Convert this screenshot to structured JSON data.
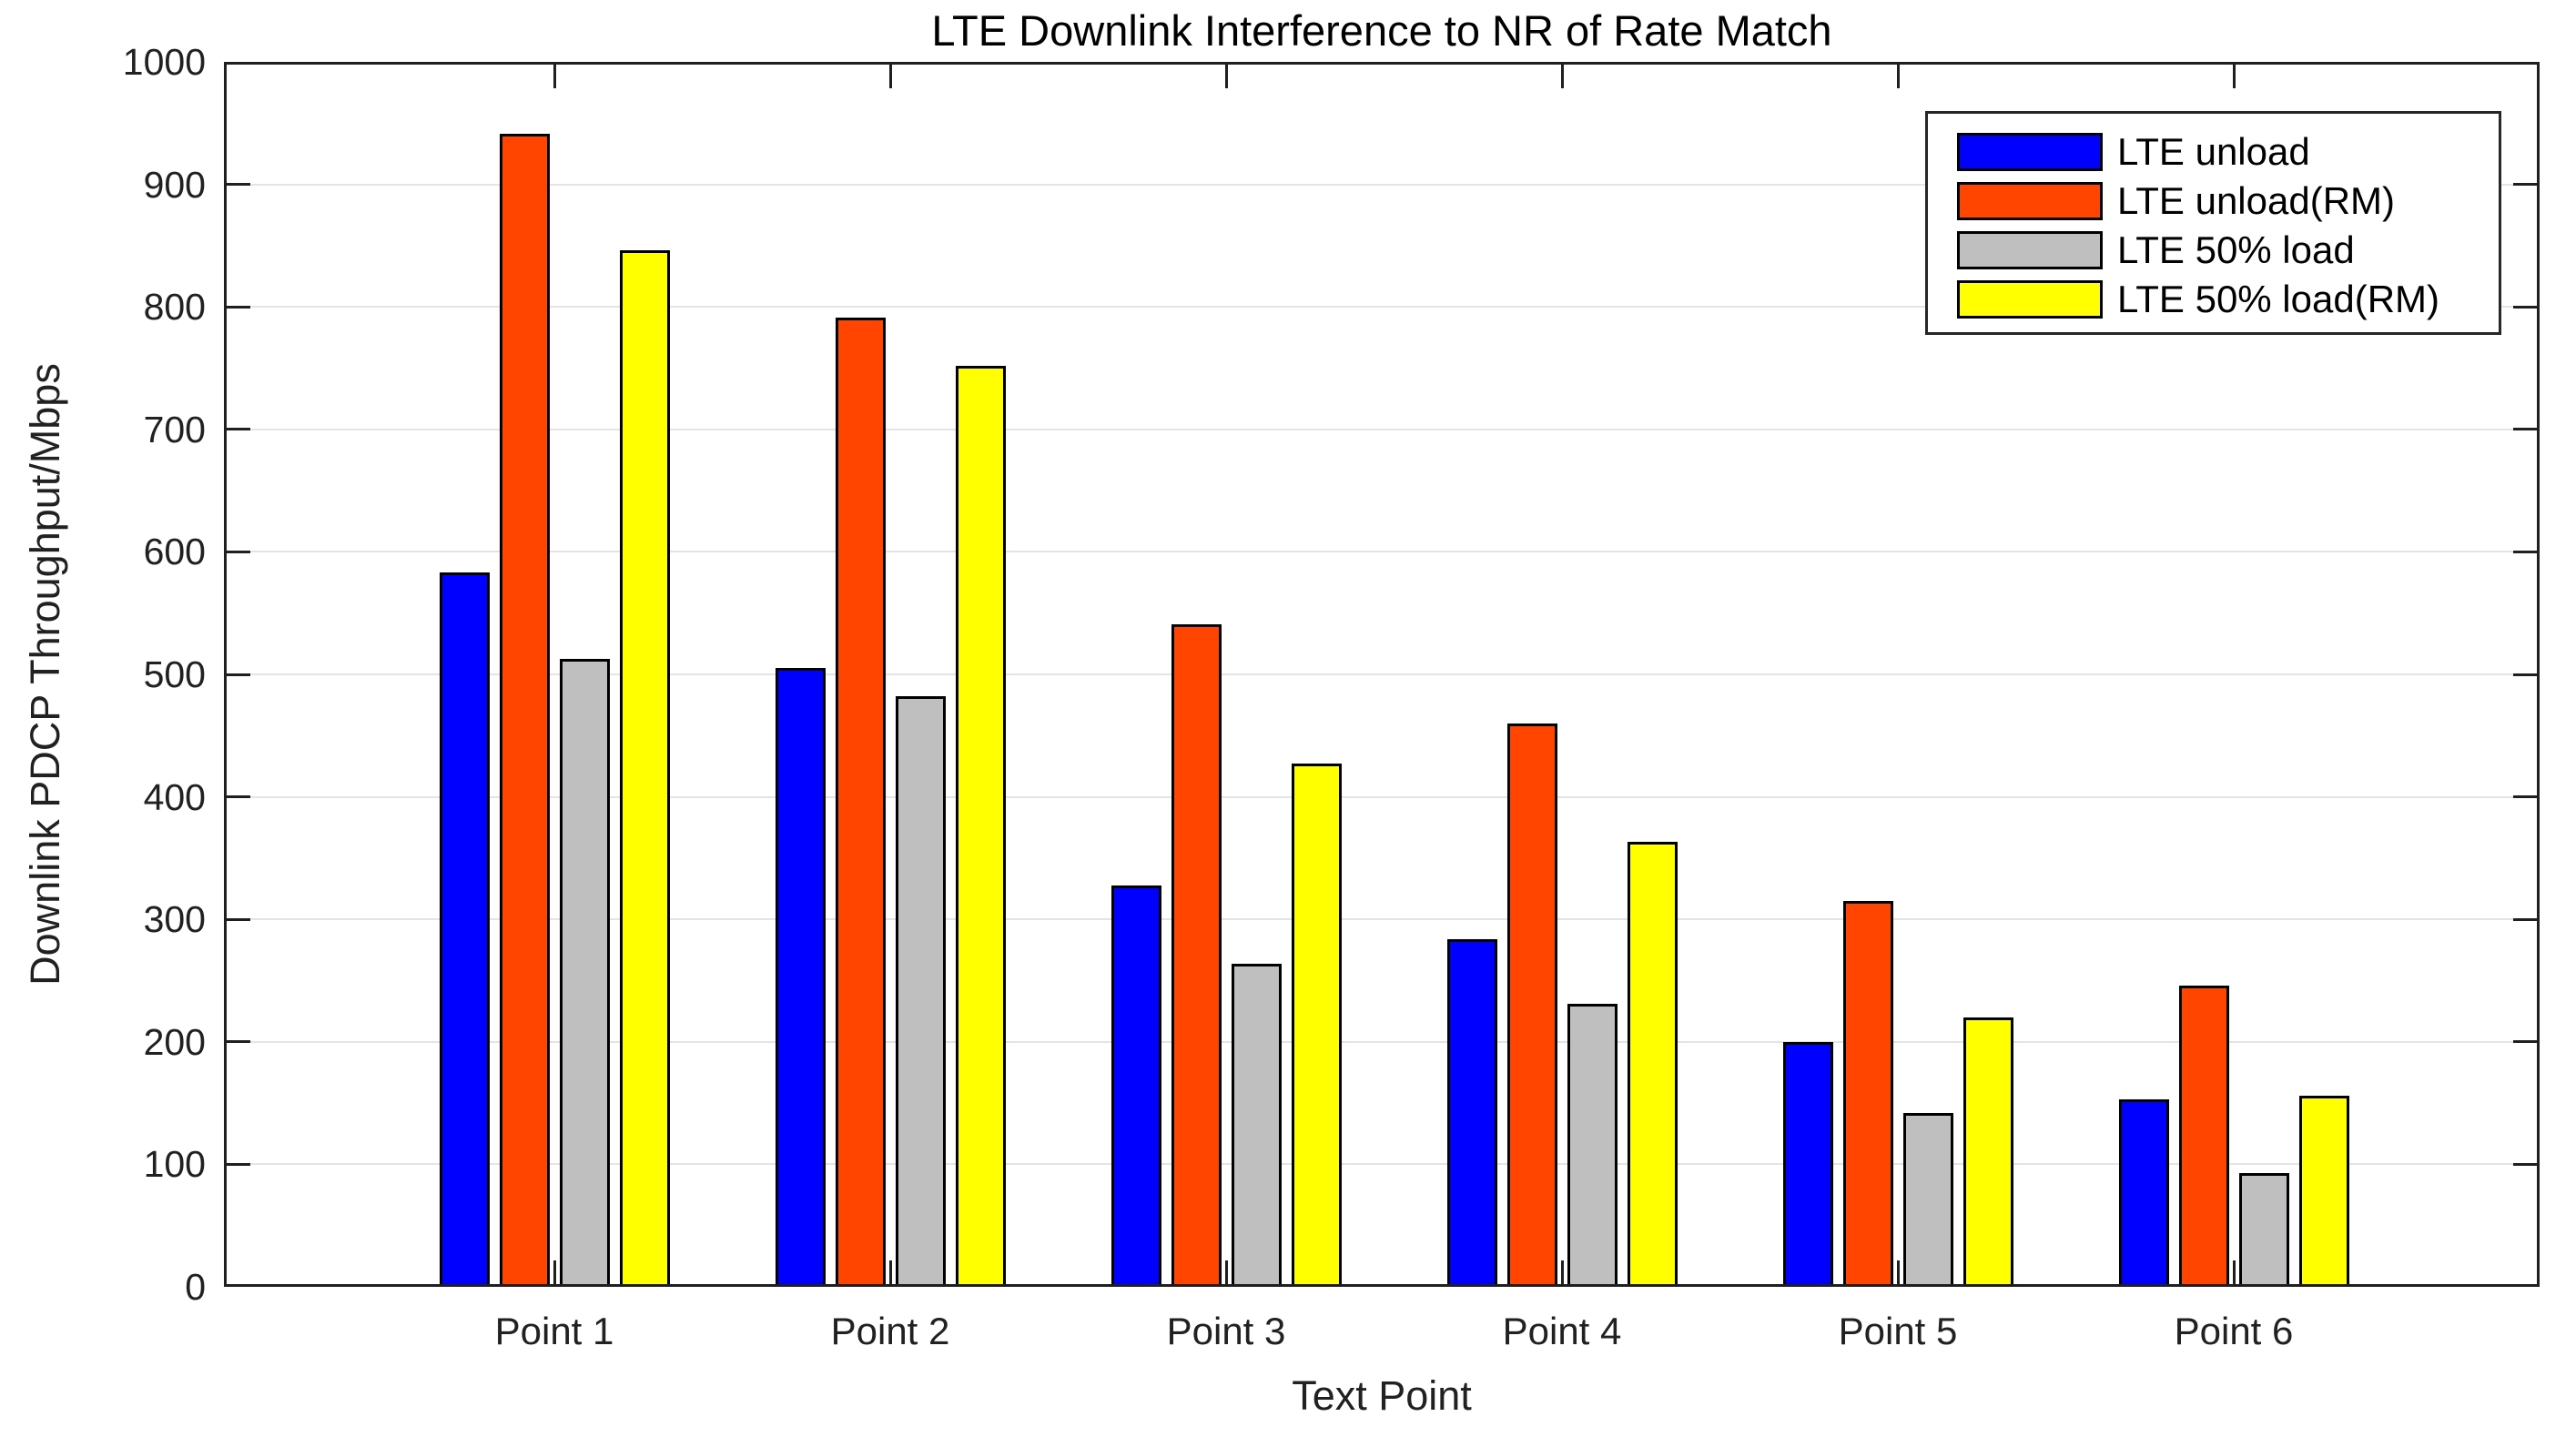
{
  "chart_data": {
    "type": "bar",
    "title": "LTE Downlink Interference to NR of Rate Match",
    "xlabel": "Text Point",
    "ylabel": "Downlink PDCP Throughput/Mbps",
    "categories": [
      "Point 1",
      "Point 2",
      "Point 3",
      "Point 4",
      "Point 5",
      "Point 6"
    ],
    "series": [
      {
        "name": "LTE unload",
        "color": "#0000FE",
        "values": [
          583,
          505,
          328,
          284,
          200,
          153
        ]
      },
      {
        "name": "LTE unload(RM)",
        "color": "#FF4500",
        "values": [
          941,
          791,
          541,
          460,
          315,
          246
        ]
      },
      {
        "name": "LTE 50% load",
        "color": "#BFBFBF",
        "values": [
          513,
          482,
          264,
          231,
          142,
          93
        ]
      },
      {
        "name": "LTE 50% load(RM)",
        "color": "#FFFF00",
        "values": [
          846,
          752,
          427,
          363,
          220,
          156
        ]
      }
    ],
    "ylim": [
      0,
      1000
    ],
    "ytick_step": 100,
    "grid": true,
    "legend_position": "top-right",
    "bar_edge_color": "#000000",
    "grid_color": "#e4e4e4",
    "axis_color": "#1f1f1f",
    "text_color": "#212121",
    "background": "#ffffff"
  }
}
